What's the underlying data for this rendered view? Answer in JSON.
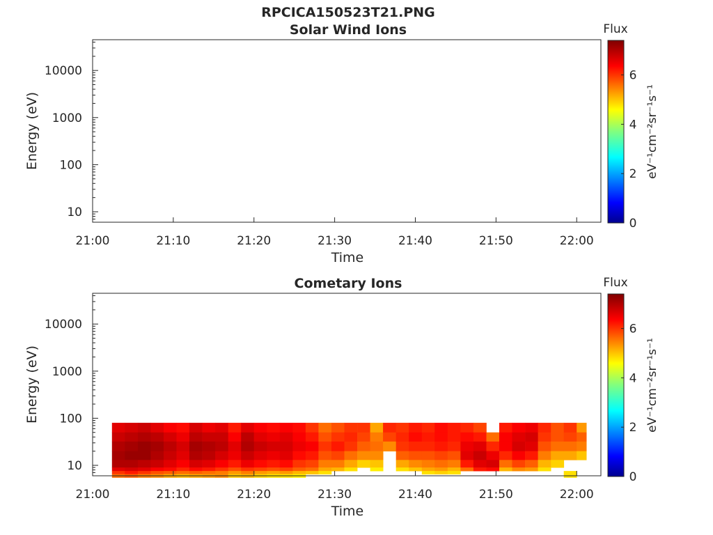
{
  "chart_data": {
    "title": "RPCICA150523T21.PNG",
    "panels": [
      {
        "type": "heatmap",
        "title": "Solar Wind Ions",
        "xlabel": "Time",
        "ylabel": "Energy (eV)",
        "x_ticks": [
          "21:00",
          "21:10",
          "21:20",
          "21:30",
          "21:40",
          "21:50",
          "22:00"
        ],
        "xlim_minutes": [
          0,
          63
        ],
        "y_scale": "log",
        "ylim": [
          6,
          45000
        ],
        "y_ticks": [
          10,
          100,
          1000,
          10000
        ],
        "y_tick_labels": [
          "10",
          "100",
          "1000",
          "10000"
        ],
        "colorbar": {
          "title": "Flux",
          "label": "eV⁻¹cm⁻²sr⁻¹s⁻¹",
          "range": [
            0,
            7.4
          ],
          "ticks": [
            0,
            2,
            4,
            6
          ],
          "tick_labels": [
            "0",
            "2",
            "4",
            "6"
          ],
          "colormap": "jet"
        },
        "columns": []
      },
      {
        "type": "heatmap",
        "title": "Cometary Ions",
        "xlabel": "Time",
        "ylabel": "Energy (eV)",
        "x_ticks": [
          "21:00",
          "21:10",
          "21:20",
          "21:30",
          "21:40",
          "21:50",
          "22:00"
        ],
        "xlim_minutes": [
          0,
          63
        ],
        "y_scale": "log",
        "ylim": [
          6,
          45000
        ],
        "y_ticks": [
          10,
          100,
          1000,
          10000
        ],
        "y_tick_labels": [
          "10",
          "100",
          "1000",
          "10000"
        ],
        "colorbar": {
          "title": "Flux",
          "label": "eV⁻¹cm⁻²sr⁻¹s⁻¹",
          "range": [
            0,
            7.4
          ],
          "ticks": [
            0,
            2,
            4,
            6
          ],
          "tick_labels": [
            "0",
            "2",
            "4",
            "6"
          ],
          "colormap": "jet"
        },
        "energy_bins_eV": [
          80,
          50,
          32,
          20,
          13,
          9,
          7.6,
          6.5
        ],
        "columns": [
          {
            "t": 2.4,
            "dt": 1.6,
            "flux": [
              6.6,
              6.8,
              7.0,
              7.1,
              7.0,
              6.6,
              6.0,
              5.6
            ]
          },
          {
            "t": 4.0,
            "dt": 1.6,
            "flux": [
              6.7,
              6.9,
              7.1,
              7.2,
              7.0,
              6.7,
              6.2,
              5.7
            ]
          },
          {
            "t": 5.6,
            "dt": 1.6,
            "flux": [
              6.8,
              7.0,
              7.2,
              7.2,
              6.9,
              6.6,
              6.0,
              5.5
            ]
          },
          {
            "t": 7.2,
            "dt": 1.6,
            "flux": [
              6.6,
              6.9,
              7.1,
              7.0,
              6.8,
              6.4,
              5.8,
              5.4
            ]
          },
          {
            "t": 8.8,
            "dt": 1.6,
            "flux": [
              6.4,
              6.7,
              6.9,
              6.8,
              6.6,
              6.3,
              5.7,
              5.2
            ]
          },
          {
            "t": 10.4,
            "dt": 1.6,
            "flux": [
              6.3,
              6.5,
              6.7,
              6.6,
              6.4,
              6.1,
              5.6,
              5.1
            ]
          },
          {
            "t": 12.0,
            "dt": 1.6,
            "flux": [
              6.7,
              6.9,
              7.1,
              7.0,
              6.7,
              6.3,
              5.7,
              5.2
            ]
          },
          {
            "t": 13.6,
            "dt": 1.6,
            "flux": [
              6.5,
              6.8,
              7.0,
              6.9,
              6.6,
              6.2,
              5.6,
              5.3
            ]
          },
          {
            "t": 15.2,
            "dt": 1.6,
            "flux": [
              6.6,
              6.8,
              6.9,
              6.7,
              6.4,
              6.0,
              5.5,
              5.4
            ]
          },
          {
            "t": 16.8,
            "dt": 1.6,
            "flux": [
              6.2,
              6.4,
              6.6,
              6.5,
              6.2,
              5.8,
              5.3,
              5.0
            ]
          },
          {
            "t": 18.4,
            "dt": 1.6,
            "flux": [
              6.6,
              6.9,
              7.0,
              6.8,
              6.5,
              6.0,
              5.5,
              5.1
            ]
          },
          {
            "t": 20.0,
            "dt": 1.6,
            "flux": [
              6.4,
              6.6,
              6.8,
              6.6,
              6.3,
              5.9,
              5.3,
              4.9
            ]
          },
          {
            "t": 21.6,
            "dt": 1.6,
            "flux": [
              6.3,
              6.5,
              6.7,
              6.5,
              6.2,
              5.8,
              5.2,
              4.8
            ]
          },
          {
            "t": 23.2,
            "dt": 1.6,
            "flux": [
              6.4,
              6.6,
              6.7,
              6.6,
              6.3,
              5.9,
              5.3,
              4.8
            ]
          },
          {
            "t": 24.8,
            "dt": 1.6,
            "flux": [
              6.3,
              6.4,
              6.5,
              6.3,
              6.0,
              5.7,
              5.1,
              4.7
            ]
          },
          {
            "t": 26.4,
            "dt": 1.6,
            "flux": [
              6.0,
              6.2,
              6.4,
              6.2,
              5.9,
              5.6,
              5.0,
              0
            ]
          },
          {
            "t": 28.0,
            "dt": 1.6,
            "flux": [
              5.6,
              5.8,
              6.0,
              5.8,
              5.5,
              5.2,
              4.8,
              0
            ]
          },
          {
            "t": 29.6,
            "dt": 1.6,
            "flux": [
              5.8,
              6.0,
              6.2,
              5.9,
              5.5,
              5.1,
              0,
              0
            ]
          },
          {
            "t": 31.2,
            "dt": 1.6,
            "flux": [
              6.0,
              6.1,
              6.0,
              5.6,
              5.2,
              4.8,
              0,
              0
            ]
          },
          {
            "t": 32.8,
            "dt": 1.6,
            "flux": [
              6.0,
              5.9,
              5.7,
              5.4,
              4.9,
              0,
              0,
              0
            ]
          },
          {
            "t": 34.4,
            "dt": 1.6,
            "flux": [
              5.2,
              5.5,
              5.6,
              5.4,
              5.0,
              4.7,
              0,
              0
            ]
          },
          {
            "t": 36.0,
            "dt": 1.6,
            "flux": [
              6.1,
              5.9,
              5.4,
              0,
              0,
              0,
              0,
              0
            ]
          },
          {
            "t": 37.6,
            "dt": 1.6,
            "flux": [
              6.0,
              6.1,
              6.0,
              5.7,
              5.2,
              4.8,
              0,
              0
            ]
          },
          {
            "t": 39.2,
            "dt": 1.6,
            "flux": [
              6.2,
              6.3,
              6.1,
              5.8,
              5.4,
              5.0,
              0,
              0
            ]
          },
          {
            "t": 40.8,
            "dt": 1.6,
            "flux": [
              6.1,
              6.2,
              6.1,
              5.8,
              5.5,
              5.2,
              4.8,
              0
            ]
          },
          {
            "t": 42.4,
            "dt": 1.6,
            "flux": [
              6.3,
              6.3,
              6.2,
              5.9,
              5.6,
              5.3,
              4.9,
              0
            ]
          },
          {
            "t": 44.0,
            "dt": 1.6,
            "flux": [
              6.2,
              6.2,
              6.1,
              5.8,
              5.5,
              5.1,
              4.8,
              0
            ]
          },
          {
            "t": 45.6,
            "dt": 1.6,
            "flux": [
              6.1,
              6.3,
              6.5,
              6.6,
              6.2,
              5.6,
              0,
              0
            ]
          },
          {
            "t": 47.2,
            "dt": 1.6,
            "flux": [
              5.9,
              6.2,
              6.6,
              6.8,
              6.6,
              6.2,
              0,
              0
            ]
          },
          {
            "t": 48.8,
            "dt": 1.6,
            "flux": [
              0,
              5.6,
              6.1,
              6.5,
              6.7,
              6.3,
              0,
              0
            ]
          },
          {
            "t": 50.4,
            "dt": 1.6,
            "flux": [
              6.2,
              6.4,
              6.4,
              6.1,
              5.6,
              5.1,
              0,
              0
            ]
          },
          {
            "t": 52.0,
            "dt": 1.6,
            "flux": [
              6.4,
              6.6,
              6.7,
              6.4,
              5.9,
              5.4,
              0,
              0
            ]
          },
          {
            "t": 53.6,
            "dt": 1.6,
            "flux": [
              6.5,
              6.7,
              6.6,
              6.2,
              5.7,
              5.3,
              0,
              0
            ]
          },
          {
            "t": 55.2,
            "dt": 1.6,
            "flux": [
              6.1,
              6.0,
              5.8,
              5.5,
              5.1,
              4.8,
              0,
              0
            ]
          },
          {
            "t": 56.8,
            "dt": 1.6,
            "flux": [
              5.8,
              5.8,
              5.6,
              5.2,
              4.9,
              0,
              0,
              0
            ]
          },
          {
            "t": 58.4,
            "dt": 1.6,
            "flux": [
              6.0,
              5.9,
              5.6,
              5.2,
              0,
              0,
              4.8,
              4.8
            ]
          },
          {
            "t": 60.0,
            "dt": 1.2,
            "flux": [
              5.3,
              5.7,
              5.5,
              5.0,
              0,
              0,
              0,
              0
            ]
          }
        ]
      }
    ]
  }
}
